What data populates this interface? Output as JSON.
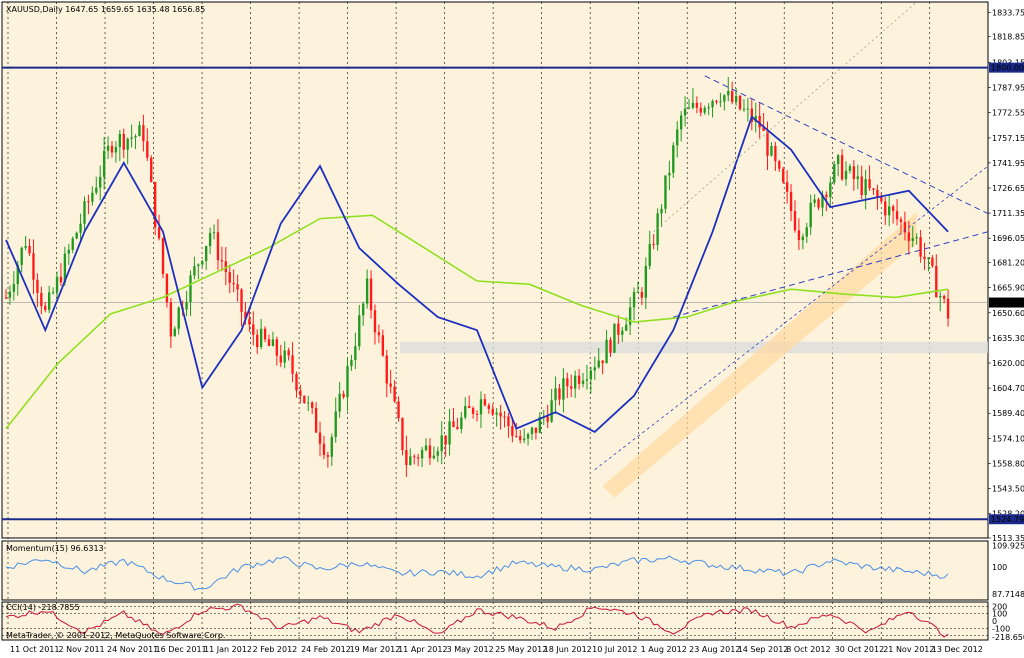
{
  "header": {
    "symbol": "XAUUSD,Daily",
    "ohlc": "1647.65 1659.65 1635.48 1656.85"
  },
  "footer": {
    "copyright": "MetaTrader, © 2001-2012, MetaQuotes Software Corp."
  },
  "colors": {
    "bg": "#fdf3dc",
    "bull": "#1f9a1f",
    "bear": "#ff1a1a",
    "ma_fast": "#1c2fbf",
    "ma_slow": "#90e020",
    "hline": "#1a2a8a",
    "momentum": "#4a8fe8",
    "cci": "#c8143c",
    "channel": "#ffd8a0",
    "zone": "#dcdcdc"
  },
  "chart_data": [
    {
      "type": "candlestick",
      "title": "XAUUSD,Daily",
      "ylim": [
        1513.35,
        1840
      ],
      "y_ticks": [
        "1833.75",
        "1818.85",
        "1803.15",
        "1787.95",
        "1772.55",
        "1757.15",
        "1741.95",
        "1726.65",
        "1711.35",
        "1696.05",
        "1681.20",
        "1665.90",
        "1650.60",
        "1635.30",
        "1620.00",
        "1604.70",
        "1589.40",
        "1574.10",
        "1558.80",
        "1543.50",
        "1528.20",
        "1513.35"
      ],
      "x_ticks": [
        "11 Oct 2011",
        "2 Nov 2011",
        "24 Nov 2011",
        "16 Dec 2011",
        "11 Jan 2012",
        "2 Feb 2012",
        "24 Feb 2012",
        "19 Mar 2012",
        "11 Apr 2012",
        "3 May 2012",
        "25 May 2012",
        "18 Jun 2012",
        "10 Jul 2012",
        "1 Aug 2012",
        "23 Aug 2012",
        "14 Sep 2012",
        "8 Oct 2012",
        "30 Oct 2012",
        "21 Nov 2012",
        "13 Dec 2012"
      ],
      "horizontal_lines": [
        {
          "value": 1800.0,
          "label": "1800.00"
        },
        {
          "value": 1524.79,
          "label": "1524.79"
        }
      ],
      "current_price": {
        "value": 1656.85,
        "label": "1656.85"
      },
      "key_closes": [
        1660,
        1695,
        1650,
        1700,
        1755,
        1760,
        1640,
        1700,
        1640,
        1620,
        1565,
        1665,
        1560,
        1575,
        1600,
        1570,
        1605,
        1625,
        1665,
        1770,
        1785,
        1765,
        1700,
        1740,
        1720,
        1695,
        1650
      ],
      "key_close_index": [
        0,
        5,
        10,
        18,
        27,
        35,
        42,
        52,
        62,
        72,
        82,
        92,
        102,
        112,
        122,
        132,
        142,
        152,
        162,
        172,
        182,
        192,
        202,
        212,
        222,
        232,
        240
      ],
      "series": [
        {
          "name": "MA fast",
          "values": [
            1695,
            1640,
            1700,
            1742,
            1700,
            1605,
            1640,
            1705,
            1740,
            1690,
            1668,
            1648,
            1640,
            1580,
            1590,
            1578,
            1600,
            1640,
            1700,
            1770,
            1750,
            1715,
            1720,
            1725,
            1700
          ]
        },
        {
          "name": "MA slow",
          "values": [
            1580,
            1620,
            1650,
            1660,
            1675,
            1690,
            1708,
            1710,
            1690,
            1670,
            1668,
            1655,
            1645,
            1648,
            1658,
            1665,
            1662,
            1660,
            1665
          ]
        }
      ]
    },
    {
      "type": "line",
      "title": "Momentum(15) 96.6313",
      "y_ticks": [
        "109.9256",
        "100",
        "87.7148"
      ],
      "series": [
        {
          "name": "Momentum(15)",
          "values": [
            100,
            104,
            98,
            103,
            95,
            90,
            100,
            104,
            99,
            102,
            97,
            98,
            96,
            102,
            100,
            99,
            103,
            104,
            101,
            99,
            97,
            103,
            100,
            98,
            96
          ]
        }
      ]
    },
    {
      "type": "line",
      "title": "CCI(14) -218.7855",
      "y_ticks": [
        "200",
        "100",
        "0",
        "-100",
        "-218.650"
      ],
      "series": [
        {
          "name": "CCI(14)",
          "values": [
            50,
            150,
            -150,
            100,
            -200,
            150,
            200,
            -100,
            50,
            -150,
            100,
            -200,
            150,
            50,
            -100,
            200,
            100,
            -150,
            120,
            150,
            -80,
            100,
            -150,
            150,
            -218
          ]
        }
      ]
    }
  ]
}
